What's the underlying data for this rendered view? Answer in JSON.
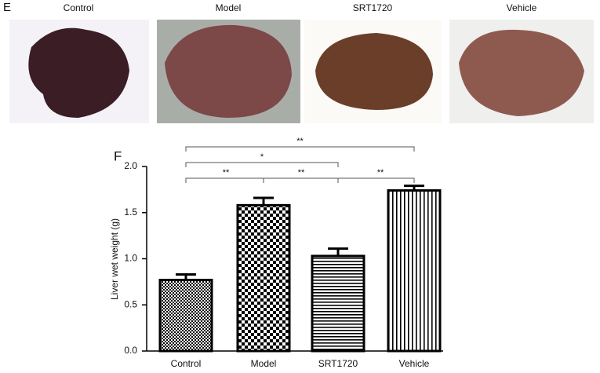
{
  "panel_e": {
    "label": "E",
    "photos": [
      "Control",
      "Model",
      "SRT1720",
      "Vehicle"
    ]
  },
  "chart_data": {
    "type": "bar",
    "panel_label": "F",
    "y_label": "Liver wet weight (g)",
    "categories": [
      "Control",
      "Model",
      "SRT1720",
      "Vehicle"
    ],
    "values": [
      0.77,
      1.58,
      1.03,
      1.74
    ],
    "errors": [
      0.06,
      0.08,
      0.08,
      0.05
    ],
    "color": "#000000",
    "ylim": [
      0,
      2.0
    ],
    "yticks": [
      {
        "value": 0,
        "label": "0.0"
      },
      {
        "value": 0.5,
        "label": "0.5"
      },
      {
        "value": 1.0,
        "label": "1.0"
      },
      {
        "value": 1.5,
        "label": "1.5"
      },
      {
        "value": 2.0,
        "label": "2.0"
      }
    ],
    "significance": [
      "**",
      "*",
      "**",
      "**",
      "**"
    ]
  }
}
